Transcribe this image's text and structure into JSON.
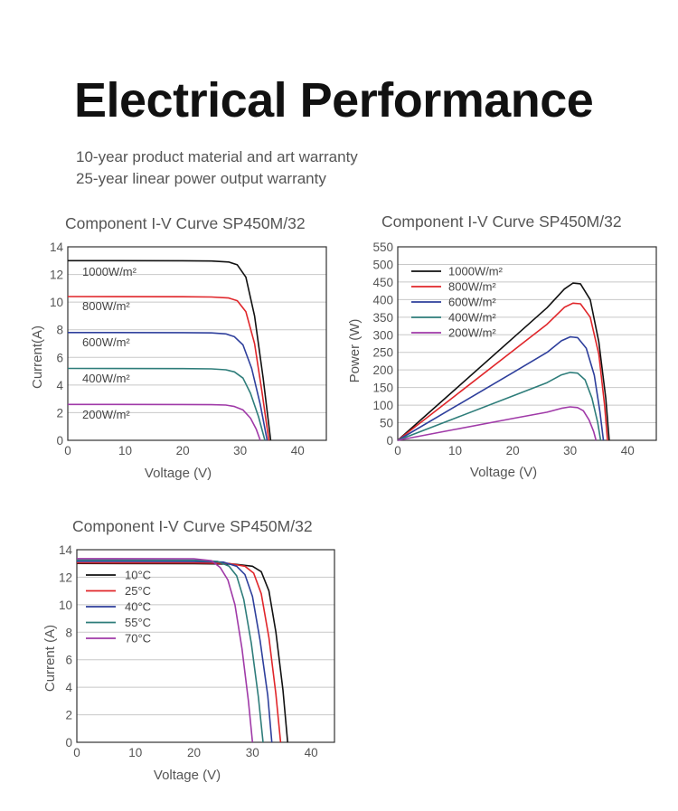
{
  "header": {
    "title": "Electrical Performance",
    "warranty_lines": [
      "10-year product material and art warranty",
      "25-year linear power output warranty"
    ]
  },
  "colors": {
    "black": "#111111",
    "red": "#e0262a",
    "blue": "#2e3f9c",
    "teal": "#2e7d7a",
    "purple": "#a03aa8",
    "grid": "#c8c8c8"
  },
  "chart_data": [
    {
      "type": "line",
      "title": "Component I-V Curve SP450M/32",
      "xlabel": "Voltage (V)",
      "ylabel": "Current(A)",
      "xlim": [
        0,
        45
      ],
      "ylim": [
        0,
        14
      ],
      "xticks": [
        0,
        10,
        20,
        30,
        40
      ],
      "yticks": [
        0,
        2,
        4,
        6,
        8,
        10,
        12,
        14
      ],
      "grid": true,
      "labels_inline": true,
      "series": [
        {
          "name": "1000W/m²",
          "color": "#111111",
          "x": [
            0,
            20,
            25,
            28,
            29.5,
            31,
            32.5,
            34,
            35.3
          ],
          "y": [
            13.0,
            12.99,
            12.97,
            12.9,
            12.7,
            11.8,
            9.0,
            4.5,
            0
          ]
        },
        {
          "name": "800W/m²",
          "color": "#e0262a",
          "x": [
            0,
            20,
            25,
            28,
            29.5,
            31,
            32.5,
            33.8,
            35.0
          ],
          "y": [
            10.4,
            10.39,
            10.37,
            10.3,
            10.1,
            9.3,
            7.0,
            3.5,
            0
          ]
        },
        {
          "name": "600W/m²",
          "color": "#2e3f9c",
          "x": [
            0,
            20,
            25,
            27.5,
            29,
            30.5,
            32,
            33.5,
            34.7
          ],
          "y": [
            7.8,
            7.79,
            7.77,
            7.7,
            7.5,
            6.9,
            5.2,
            2.6,
            0
          ]
        },
        {
          "name": "400W/m²",
          "color": "#2e7d7a",
          "x": [
            0,
            20,
            25,
            27.5,
            29,
            30.5,
            31.8,
            33.2,
            34.3
          ],
          "y": [
            5.2,
            5.19,
            5.17,
            5.1,
            4.95,
            4.5,
            3.4,
            1.7,
            0
          ]
        },
        {
          "name": "200W/m²",
          "color": "#a03aa8",
          "x": [
            0,
            20,
            25,
            27.5,
            29,
            30.5,
            31.8,
            32.8,
            33.5
          ],
          "y": [
            2.6,
            2.59,
            2.58,
            2.55,
            2.45,
            2.2,
            1.6,
            0.8,
            0
          ]
        }
      ]
    },
    {
      "type": "line",
      "title": "Component I-V Curve SP450M/32",
      "xlabel": "Voltage (V)",
      "ylabel": "Power (W)",
      "xlim": [
        0,
        45
      ],
      "ylim": [
        0,
        550
      ],
      "xticks": [
        0,
        10,
        20,
        30,
        40
      ],
      "yticks": [
        0,
        50,
        100,
        150,
        200,
        250,
        300,
        350,
        400,
        450,
        500,
        550
      ],
      "grid": true,
      "legend": "top-left",
      "series": [
        {
          "name": "1000W/m²",
          "color": "#111111",
          "x": [
            0,
            10,
            20,
            26,
            29,
            30.5,
            31.8,
            33.5,
            35,
            36.2,
            36.8
          ],
          "y": [
            0,
            145,
            290,
            377,
            430,
            447,
            445,
            400,
            280,
            120,
            0
          ]
        },
        {
          "name": "800W/m²",
          "color": "#e0262a",
          "x": [
            0,
            10,
            20,
            26,
            29,
            30.5,
            31.8,
            33.5,
            35,
            36,
            36.5
          ],
          "y": [
            0,
            127,
            254,
            330,
            378,
            390,
            388,
            350,
            245,
            100,
            0
          ]
        },
        {
          "name": "600W/m²",
          "color": "#2e3f9c",
          "x": [
            0,
            10,
            20,
            26,
            28.5,
            30,
            31.3,
            32.8,
            34.2,
            35.2,
            35.8
          ],
          "y": [
            0,
            96,
            192,
            250,
            283,
            294,
            292,
            262,
            185,
            80,
            0
          ]
        },
        {
          "name": "400W/m²",
          "color": "#2e7d7a",
          "x": [
            0,
            10,
            20,
            26,
            28.5,
            30,
            31.3,
            32.6,
            33.8,
            34.8,
            35.3
          ],
          "y": [
            0,
            63,
            126,
            164,
            186,
            193,
            191,
            172,
            120,
            50,
            0
          ]
        },
        {
          "name": "200W/m²",
          "color": "#a03aa8",
          "x": [
            0,
            10,
            20,
            26,
            28.5,
            30,
            31.3,
            32.3,
            33.3,
            34.1,
            34.5
          ],
          "y": [
            0,
            31,
            62,
            80,
            91,
            95,
            93,
            84,
            58,
            25,
            0
          ]
        }
      ]
    },
    {
      "type": "line",
      "title": "Component I-V Curve SP450M/32",
      "xlabel": "Voltage (V)",
      "ylabel": "Current (A)",
      "xlim": [
        0,
        44
      ],
      "ylim": [
        0,
        14
      ],
      "xticks": [
        0,
        10,
        20,
        30,
        40
      ],
      "yticks": [
        0,
        2,
        4,
        6,
        8,
        10,
        12,
        14
      ],
      "grid": true,
      "legend": "top-left",
      "series": [
        {
          "name": "10°C",
          "color": "#111111",
          "x": [
            0,
            20,
            27,
            30,
            31.5,
            32.8,
            34,
            35.2,
            36.0
          ],
          "y": [
            13.0,
            12.99,
            12.95,
            12.8,
            12.4,
            11.0,
            8.0,
            3.8,
            0
          ]
        },
        {
          "name": "25°C",
          "color": "#e0262a",
          "x": [
            0,
            20,
            26,
            28.7,
            30.2,
            31.5,
            32.8,
            34,
            34.8
          ],
          "y": [
            13.05,
            13.04,
            13.0,
            12.8,
            12.3,
            10.8,
            7.6,
            3.5,
            0
          ]
        },
        {
          "name": "40°C",
          "color": "#2e3f9c",
          "x": [
            0,
            20,
            25,
            27.3,
            28.7,
            30,
            31.3,
            32.6,
            33.3
          ],
          "y": [
            13.15,
            13.14,
            13.1,
            12.8,
            12.2,
            10.6,
            7.4,
            3.4,
            0
          ]
        },
        {
          "name": "55°C",
          "color": "#2e7d7a",
          "x": [
            0,
            20,
            24,
            26,
            27.3,
            28.5,
            29.8,
            31,
            31.8
          ],
          "y": [
            13.25,
            13.24,
            13.15,
            12.8,
            12.1,
            10.4,
            7.2,
            3.3,
            0
          ]
        },
        {
          "name": "70°C",
          "color": "#a03aa8",
          "x": [
            0,
            20,
            23,
            24.5,
            25.8,
            27,
            28.2,
            29.3,
            30.0
          ],
          "y": [
            13.35,
            13.34,
            13.2,
            12.7,
            11.8,
            10.0,
            6.8,
            3.0,
            0
          ]
        }
      ]
    }
  ]
}
